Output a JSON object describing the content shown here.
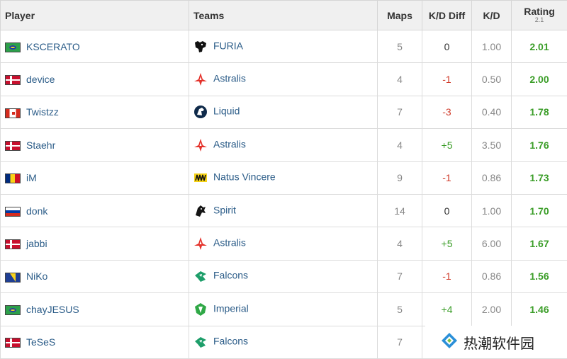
{
  "table": {
    "headers": {
      "player": "Player",
      "teams": "Teams",
      "maps": "Maps",
      "kd_diff": "K/D Diff",
      "kd": "K/D",
      "rating": "Rating",
      "rating_version": "2.1"
    },
    "rows": [
      {
        "flag": "brazil",
        "player": "KSCERATO",
        "team_logo": "furia-panther-icon",
        "team": "FURIA",
        "maps": "5",
        "kd_diff": "0",
        "kd": "1.00",
        "rating": "2.01"
      },
      {
        "flag": "denmark",
        "player": "device",
        "team_logo": "astralis-star-icon",
        "team": "Astralis",
        "maps": "4",
        "kd_diff": "-1",
        "kd": "0.50",
        "rating": "2.00"
      },
      {
        "flag": "canada",
        "player": "Twistzz",
        "team_logo": "liquid-horse-icon",
        "team": "Liquid",
        "maps": "7",
        "kd_diff": "-3",
        "kd": "0.40",
        "rating": "1.78"
      },
      {
        "flag": "denmark",
        "player": "Staehr",
        "team_logo": "astralis-star-icon",
        "team": "Astralis",
        "maps": "4",
        "kd_diff": "+5",
        "kd": "3.50",
        "rating": "1.76"
      },
      {
        "flag": "romania",
        "player": "iM",
        "team_logo": "navi-icon",
        "team": "Natus Vincere",
        "maps": "9",
        "kd_diff": "-1",
        "kd": "0.86",
        "rating": "1.73"
      },
      {
        "flag": "russia",
        "player": "donk",
        "team_logo": "spirit-dragon-icon",
        "team": "Spirit",
        "maps": "14",
        "kd_diff": "0",
        "kd": "1.00",
        "rating": "1.70"
      },
      {
        "flag": "denmark",
        "player": "jabbi",
        "team_logo": "astralis-star-icon",
        "team": "Astralis",
        "maps": "4",
        "kd_diff": "+5",
        "kd": "6.00",
        "rating": "1.67"
      },
      {
        "flag": "bosnia",
        "player": "NiKo",
        "team_logo": "falcons-icon",
        "team": "Falcons",
        "maps": "7",
        "kd_diff": "-1",
        "kd": "0.86",
        "rating": "1.56"
      },
      {
        "flag": "brazil",
        "player": "chayJESUS",
        "team_logo": "imperial-icon",
        "team": "Imperial",
        "maps": "5",
        "kd_diff": "+4",
        "kd": "2.00",
        "rating": "1.46"
      },
      {
        "flag": "denmark",
        "player": "TeSeS",
        "team_logo": "falcons-icon",
        "team": "Falcons",
        "maps": "7",
        "kd_diff": "",
        "kd": "",
        "rating": ""
      }
    ]
  },
  "colors": {
    "link": "#2b5c88",
    "positive": "#3a9d27",
    "negative": "#d03b2a",
    "header_bg": "#f0f0f0"
  },
  "watermark": {
    "text": "热潮软件园",
    "icon": "diamond-logo-icon"
  }
}
